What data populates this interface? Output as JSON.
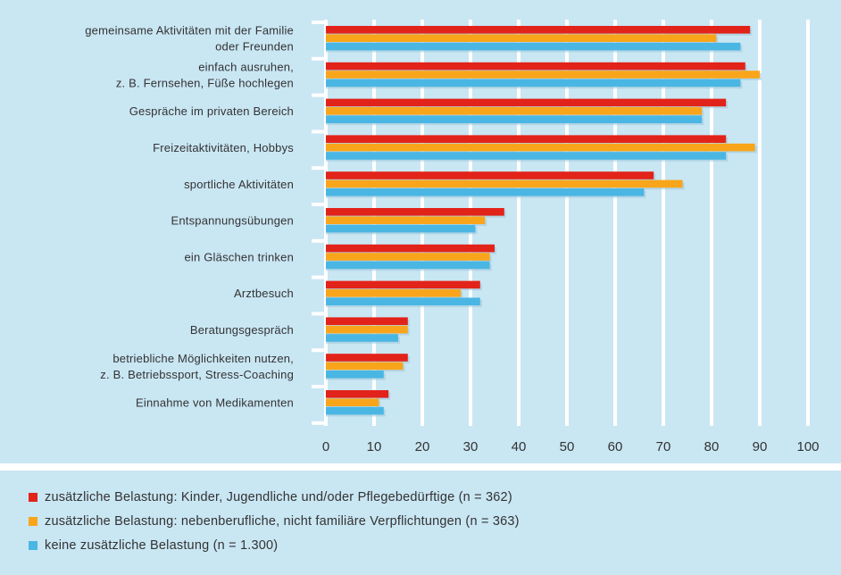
{
  "chart_data": {
    "type": "bar",
    "orientation": "horizontal",
    "categories": [
      [
        "gemeinsame Aktivitäten mit der Familie",
        "oder Freunden"
      ],
      [
        "einfach ausruhen,",
        "z. B. Fernsehen, Füße hochlegen"
      ],
      [
        "Gespräche im privaten Bereich"
      ],
      [
        "Freizeitaktivitäten, Hobbys"
      ],
      [
        "sportliche Aktivitäten"
      ],
      [
        "Entspannungsübungen"
      ],
      [
        "ein Gläschen trinken"
      ],
      [
        "Arztbesuch"
      ],
      [
        "Beratungsgespräch"
      ],
      [
        "betriebliche Möglichkeiten nutzen,",
        "z. B. Betriebssport, Stress-Coaching"
      ],
      [
        "Einnahme von Medikamenten"
      ]
    ],
    "series": [
      {
        "name": "zusätzliche Belastung: Kinder, Jugendliche und/oder Pflegebedürftige (n = 362)",
        "color": "#e2231a",
        "values": [
          88,
          87,
          83,
          83,
          68,
          37,
          35,
          32,
          17,
          17,
          13
        ]
      },
      {
        "name": "zusätzliche Belastung: nebenberufliche, nicht familiäre Verpflichtungen (n = 363)",
        "color": "#f9a51b",
        "values": [
          81,
          90,
          78,
          89,
          74,
          33,
          34,
          28,
          17,
          16,
          11
        ]
      },
      {
        "name": "keine zusätzliche Belastung (n = 1.300)",
        "color": "#4ab6e3",
        "values": [
          86,
          86,
          78,
          83,
          66,
          31,
          34,
          32,
          15,
          12,
          12
        ]
      }
    ],
    "xlim": [
      0,
      100
    ],
    "xticks": [
      "0",
      "10",
      "20",
      "30",
      "40",
      "50",
      "60",
      "70",
      "80",
      "90",
      "100"
    ],
    "grid": true,
    "legend_position": "bottom"
  }
}
